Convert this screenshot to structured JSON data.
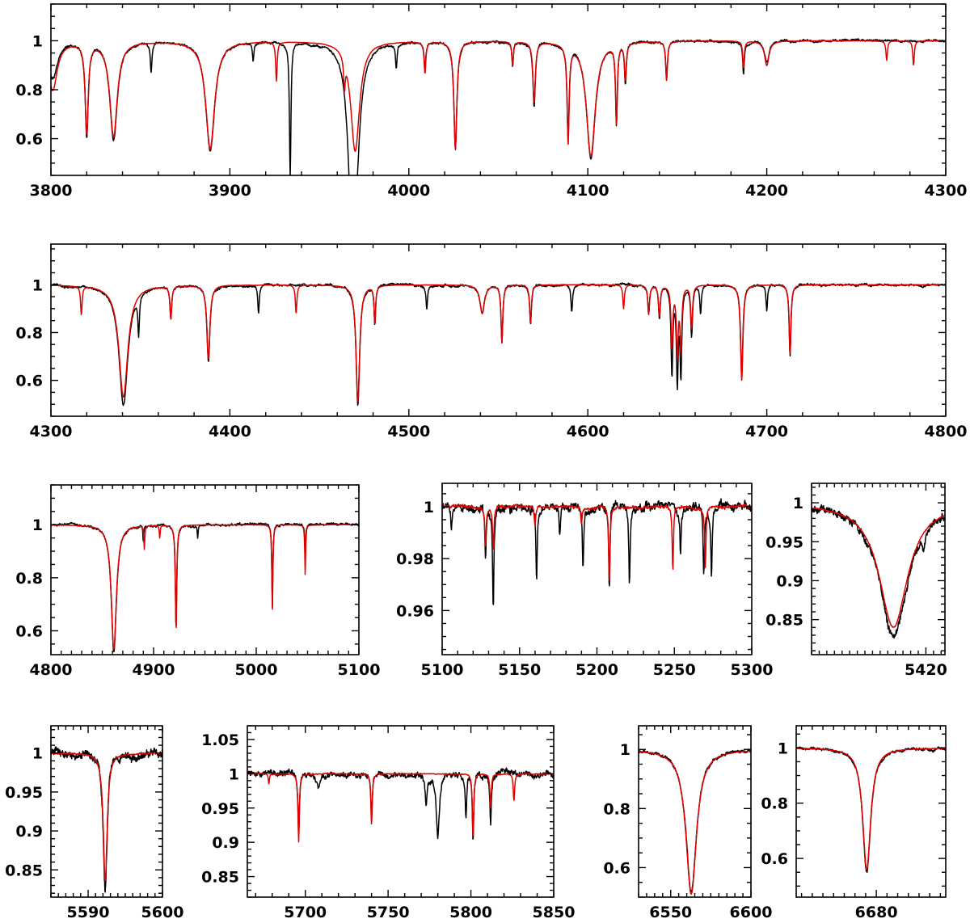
{
  "chart_data": [
    {
      "type": "line",
      "panel": 1,
      "xlim": [
        3800,
        4300
      ],
      "ylim": [
        0.45,
        1.15
      ],
      "xticks": [
        3800,
        3900,
        4000,
        4100,
        4200,
        4300
      ],
      "xtick_labels": [
        "3800",
        "3900",
        "4000",
        "4100",
        "4200",
        "4300"
      ],
      "yticks": [
        0.6,
        0.8,
        1.0
      ],
      "ytick_labels": [
        "0.6",
        "0.8",
        "1"
      ],
      "grid": false,
      "series": [
        {
          "role": "observed",
          "color": "#000000",
          "lines": [
            [
              3801,
              0.85,
              3
            ],
            [
              3820,
              0.62,
              1
            ],
            [
              3835,
              0.6,
              2.5
            ],
            [
              3889,
              0.55,
              3
            ],
            [
              3933.7,
              0.45,
              0.5
            ],
            [
              3968,
              0.52,
              2.5
            ],
            [
              3970,
              0.55,
              3
            ],
            [
              4009,
              0.9,
              0.6
            ],
            [
              4026,
              0.56,
              1
            ],
            [
              4070,
              0.73,
              0.8
            ],
            [
              4089,
              0.62,
              0.7
            ],
            [
              4101.7,
              0.52,
              3
            ],
            [
              4116,
              0.67,
              0.6
            ],
            [
              4121,
              0.83,
              0.6
            ],
            [
              4144,
              0.85,
              0.6
            ],
            [
              4187,
              0.87,
              0.5
            ],
            [
              4200,
              0.91,
              1.5
            ],
            [
              4058,
              0.9,
              0.5
            ],
            [
              3993,
              0.9,
              0.5
            ],
            [
              3856,
              0.88,
              0.5
            ],
            [
              3913,
              0.92,
              0.5
            ]
          ]
        },
        {
          "role": "model",
          "color": "#e00000",
          "lines": [
            [
              3801,
              0.8,
              3
            ],
            [
              3820,
              0.63,
              1
            ],
            [
              3835,
              0.61,
              2.5
            ],
            [
              3889,
              0.56,
              3
            ],
            [
              3926,
              0.84,
              0.5
            ],
            [
              3964,
              0.88,
              0.5
            ],
            [
              3970,
              0.55,
              3
            ],
            [
              4009,
              0.87,
              0.6
            ],
            [
              4026,
              0.56,
              1
            ],
            [
              4070,
              0.75,
              0.8
            ],
            [
              4089,
              0.6,
              0.7
            ],
            [
              4101.7,
              0.53,
              3
            ],
            [
              4116,
              0.68,
              0.6
            ],
            [
              4121,
              0.85,
              0.6
            ],
            [
              4144,
              0.84,
              0.6
            ],
            [
              4187,
              0.89,
              0.5
            ],
            [
              4200,
              0.9,
              1.5
            ],
            [
              4058,
              0.9,
              0.5
            ],
            [
              4267,
              0.92,
              0.5
            ],
            [
              4282,
              0.9,
              0.5
            ]
          ]
        }
      ]
    },
    {
      "type": "line",
      "panel": 2,
      "xlim": [
        4300,
        4800
      ],
      "ylim": [
        0.45,
        1.17
      ],
      "xticks": [
        4300,
        4400,
        4500,
        4600,
        4700,
        4800
      ],
      "xtick_labels": [
        "4300",
        "4400",
        "4500",
        "4600",
        "4700",
        "4800"
      ],
      "yticks": [
        0.6,
        0.8,
        1.0
      ],
      "ytick_labels": [
        "0.6",
        "0.8",
        "1"
      ],
      "grid": false,
      "series": [
        {
          "role": "observed",
          "color": "#000000",
          "lines": [
            [
              4340.5,
              0.5,
              3
            ],
            [
              4388,
              0.68,
              1
            ],
            [
              4471.5,
              0.5,
              1.2
            ],
            [
              4481,
              0.84,
              0.5
            ],
            [
              4541,
              0.88,
              1.5
            ],
            [
              4552,
              0.76,
              0.6
            ],
            [
              4568,
              0.84,
              0.6
            ],
            [
              4634,
              0.88,
              0.6
            ],
            [
              4640,
              0.86,
              0.6
            ],
            [
              4647,
              0.63,
              0.6
            ],
            [
              4650,
              0.61,
              0.6
            ],
            [
              4652,
              0.64,
              0.6
            ],
            [
              4658,
              0.79,
              0.6
            ],
            [
              4686,
              0.62,
              0.8
            ],
            [
              4713,
              0.7,
              0.6
            ],
            [
              4367,
              0.87,
              0.6
            ],
            [
              4349,
              0.84,
              0.5
            ],
            [
              4416,
              0.88,
              0.5
            ],
            [
              4510,
              0.9,
              0.5
            ],
            [
              4591,
              0.89,
              0.5
            ],
            [
              4663,
              0.88,
              0.5
            ],
            [
              4700,
              0.89,
              0.5
            ]
          ]
        },
        {
          "role": "model",
          "color": "#e00000",
          "lines": [
            [
              4340.5,
              0.53,
              3
            ],
            [
              4388,
              0.69,
              1
            ],
            [
              4471.5,
              0.51,
              1.2
            ],
            [
              4481,
              0.84,
              0.5
            ],
            [
              4541,
              0.88,
              1.5
            ],
            [
              4552,
              0.76,
              0.6
            ],
            [
              4568,
              0.84,
              0.6
            ],
            [
              4634,
              0.88,
              0.6
            ],
            [
              4640,
              0.87,
              0.6
            ],
            [
              4647,
              0.74,
              0.6
            ],
            [
              4650,
              0.72,
              0.6
            ],
            [
              4652,
              0.74,
              0.6
            ],
            [
              4658,
              0.82,
              0.6
            ],
            [
              4686,
              0.6,
              0.8
            ],
            [
              4713,
              0.71,
              0.6
            ],
            [
              4367,
              0.86,
              0.6
            ],
            [
              4317,
              0.88,
              0.5
            ],
            [
              4437,
              0.88,
              0.5
            ],
            [
              4620,
              0.9,
              0.5
            ]
          ]
        }
      ]
    },
    {
      "type": "line",
      "panel": 3,
      "xlim": [
        4800,
        5100
      ],
      "ylim": [
        0.51,
        1.15
      ],
      "xticks": [
        4800,
        4900,
        5000,
        5100
      ],
      "xtick_labels": [
        "4800",
        "4900",
        "5000",
        "5100"
      ],
      "yticks": [
        0.6,
        0.8,
        1.0
      ],
      "ytick_labels": [
        "0.6",
        "0.8",
        "1"
      ],
      "grid": false,
      "series": [
        {
          "role": "observed",
          "color": "#000000",
          "lines": [
            [
              4861.3,
              0.52,
              3
            ],
            [
              4921.9,
              0.61,
              0.8
            ],
            [
              5015.7,
              0.69,
              0.6
            ],
            [
              5047.7,
              0.87,
              0.5
            ],
            [
              4943,
              0.95,
              0.5
            ],
            [
              4890,
              0.93,
              0.4
            ]
          ]
        },
        {
          "role": "model",
          "color": "#e00000",
          "lines": [
            [
              4861.3,
              0.53,
              3
            ],
            [
              4921.9,
              0.6,
              0.8
            ],
            [
              5015.7,
              0.68,
              0.6
            ],
            [
              5047.7,
              0.81,
              0.5
            ],
            [
              4891,
              0.91,
              0.5
            ],
            [
              4906,
              0.95,
              0.5
            ]
          ]
        }
      ]
    },
    {
      "type": "line",
      "panel": 4,
      "xlim": [
        5100,
        5300
      ],
      "ylim": [
        0.943,
        1.009
      ],
      "xticks": [
        5100,
        5150,
        5200,
        5250,
        5300
      ],
      "xtick_labels": [
        "5100",
        "5150",
        "5200",
        "5250",
        "5300"
      ],
      "yticks": [
        0.96,
        0.98,
        1.0
      ],
      "ytick_labels": [
        "0.96",
        "0.98",
        "1"
      ],
      "grid": false,
      "series": [
        {
          "role": "observed",
          "color": "#000000",
          "lines": [
            [
              5128,
              0.98,
              0.5
            ],
            [
              5133,
              0.96,
              0.5
            ],
            [
              5161,
              0.972,
              0.5
            ],
            [
              5191,
              0.976,
              0.5
            ],
            [
              5208,
              0.968,
              0.5
            ],
            [
              5221,
              0.97,
              0.5
            ],
            [
              5254,
              0.982,
              0.5
            ],
            [
              5269,
              0.973,
              0.5
            ],
            [
              5274,
              0.973,
              0.5
            ],
            [
              5106,
              0.99,
              0.5
            ],
            [
              5176,
              0.988,
              0.5
            ]
          ]
        },
        {
          "role": "model",
          "color": "#e00000",
          "lines": [
            [
              5128,
              0.985,
              0.5
            ],
            [
              5133,
              0.983,
              0.5
            ],
            [
              5208,
              0.971,
              0.5
            ],
            [
              5249,
              0.975,
              0.5
            ],
            [
              5270,
              0.977,
              0.5
            ],
            [
              5160,
              0.992,
              0.5
            ],
            [
              5190,
              0.993,
              0.5
            ]
          ]
        }
      ]
    },
    {
      "type": "line",
      "panel": 5,
      "xlim": [
        5390,
        5425
      ],
      "ylim": [
        0.805,
        1.025
      ],
      "xticks": [
        5420
      ],
      "xtick_labels": [
        "5420"
      ],
      "yticks": [
        0.85,
        0.9,
        0.95,
        1.0
      ],
      "ytick_labels": [
        "0.85",
        "0.9",
        "0.95",
        "1"
      ],
      "grid": false,
      "series": [
        {
          "role": "observed",
          "color": "#000000",
          "lines": [
            [
              5411.5,
              0.83,
              4.5
            ],
            [
              5419.5,
              0.982,
              0.6
            ]
          ]
        },
        {
          "role": "model",
          "color": "#e00000",
          "lines": [
            [
              5411.5,
              0.84,
              4.5
            ]
          ]
        }
      ]
    },
    {
      "type": "line",
      "panel": 6,
      "xlim": [
        5585,
        5600
      ],
      "ylim": [
        0.815,
        1.035
      ],
      "xticks": [
        5590,
        5600
      ],
      "xtick_labels": [
        "5590",
        "5600"
      ],
      "yticks": [
        0.85,
        0.9,
        0.95,
        1.0
      ],
      "ytick_labels": [
        "0.85",
        "0.9",
        "0.95",
        "1"
      ],
      "grid": false,
      "series": [
        {
          "role": "observed",
          "color": "#000000",
          "lines": [
            [
              5592.3,
              0.825,
              0.32
            ]
          ]
        },
        {
          "role": "model",
          "color": "#e00000",
          "lines": [
            [
              5592.3,
              0.835,
              0.32
            ]
          ]
        }
      ]
    },
    {
      "type": "line",
      "panel": 7,
      "xlim": [
        5665,
        5850
      ],
      "ylim": [
        0.82,
        1.07
      ],
      "xticks": [
        5700,
        5750,
        5800,
        5850
      ],
      "xtick_labels": [
        "5700",
        "5750",
        "5800",
        "5850"
      ],
      "yticks": [
        0.85,
        0.9,
        0.95,
        1.0,
        1.05
      ],
      "ytick_labels": [
        "0.85",
        "0.9",
        "0.95",
        "1",
        "1.05"
      ],
      "grid": false,
      "series": [
        {
          "role": "observed",
          "color": "#000000",
          "lines": [
            [
              5696,
              0.91,
              0.5
            ],
            [
              5740,
              0.935,
              0.5
            ],
            [
              5780,
              0.912,
              1.2
            ],
            [
              5797,
              0.94,
              0.5
            ],
            [
              5801.3,
              0.895,
              0.5
            ],
            [
              5811.9,
              0.93,
              0.5
            ],
            [
              5708,
              0.985,
              1.5
            ],
            [
              5773,
              0.96,
              0.6
            ]
          ]
        },
        {
          "role": "model",
          "color": "#e00000",
          "lines": [
            [
              5696,
              0.9,
              0.5
            ],
            [
              5740,
              0.925,
              0.5
            ],
            [
              5801.3,
              0.905,
              0.5
            ],
            [
              5811.9,
              0.95,
              0.5
            ],
            [
              5826,
              0.96,
              0.5
            ],
            [
              5678,
              0.985,
              0.4
            ]
          ]
        }
      ]
    },
    {
      "type": "line",
      "panel": 8,
      "xlim": [
        6530,
        6600
      ],
      "ylim": [
        0.5,
        1.08
      ],
      "xticks": [
        6550,
        6600
      ],
      "xtick_labels": [
        "6550",
        "6600"
      ],
      "yticks": [
        0.6,
        0.8,
        1.0
      ],
      "ytick_labels": [
        "0.6",
        "0.8",
        "1"
      ],
      "grid": false,
      "series": [
        {
          "role": "observed",
          "color": "#000000",
          "lines": [
            [
              6562.8,
              0.52,
              4
            ]
          ]
        },
        {
          "role": "model",
          "color": "#e00000",
          "lines": [
            [
              6562.8,
              0.51,
              4
            ]
          ]
        }
      ]
    },
    {
      "type": "line",
      "panel": 9,
      "xlim": [
        6665,
        6693
      ],
      "ylim": [
        0.46,
        1.08
      ],
      "xticks": [
        6680
      ],
      "xtick_labels": [
        "6680"
      ],
      "yticks": [
        0.6,
        0.8,
        1.0
      ],
      "ytick_labels": [
        "0.6",
        "0.8",
        "1"
      ],
      "grid": false,
      "series": [
        {
          "role": "observed",
          "color": "#000000",
          "lines": [
            [
              6678.2,
              0.55,
              0.9
            ]
          ]
        },
        {
          "role": "model",
          "color": "#e00000",
          "lines": [
            [
              6678.2,
              0.56,
              0.9
            ]
          ]
        }
      ]
    }
  ]
}
